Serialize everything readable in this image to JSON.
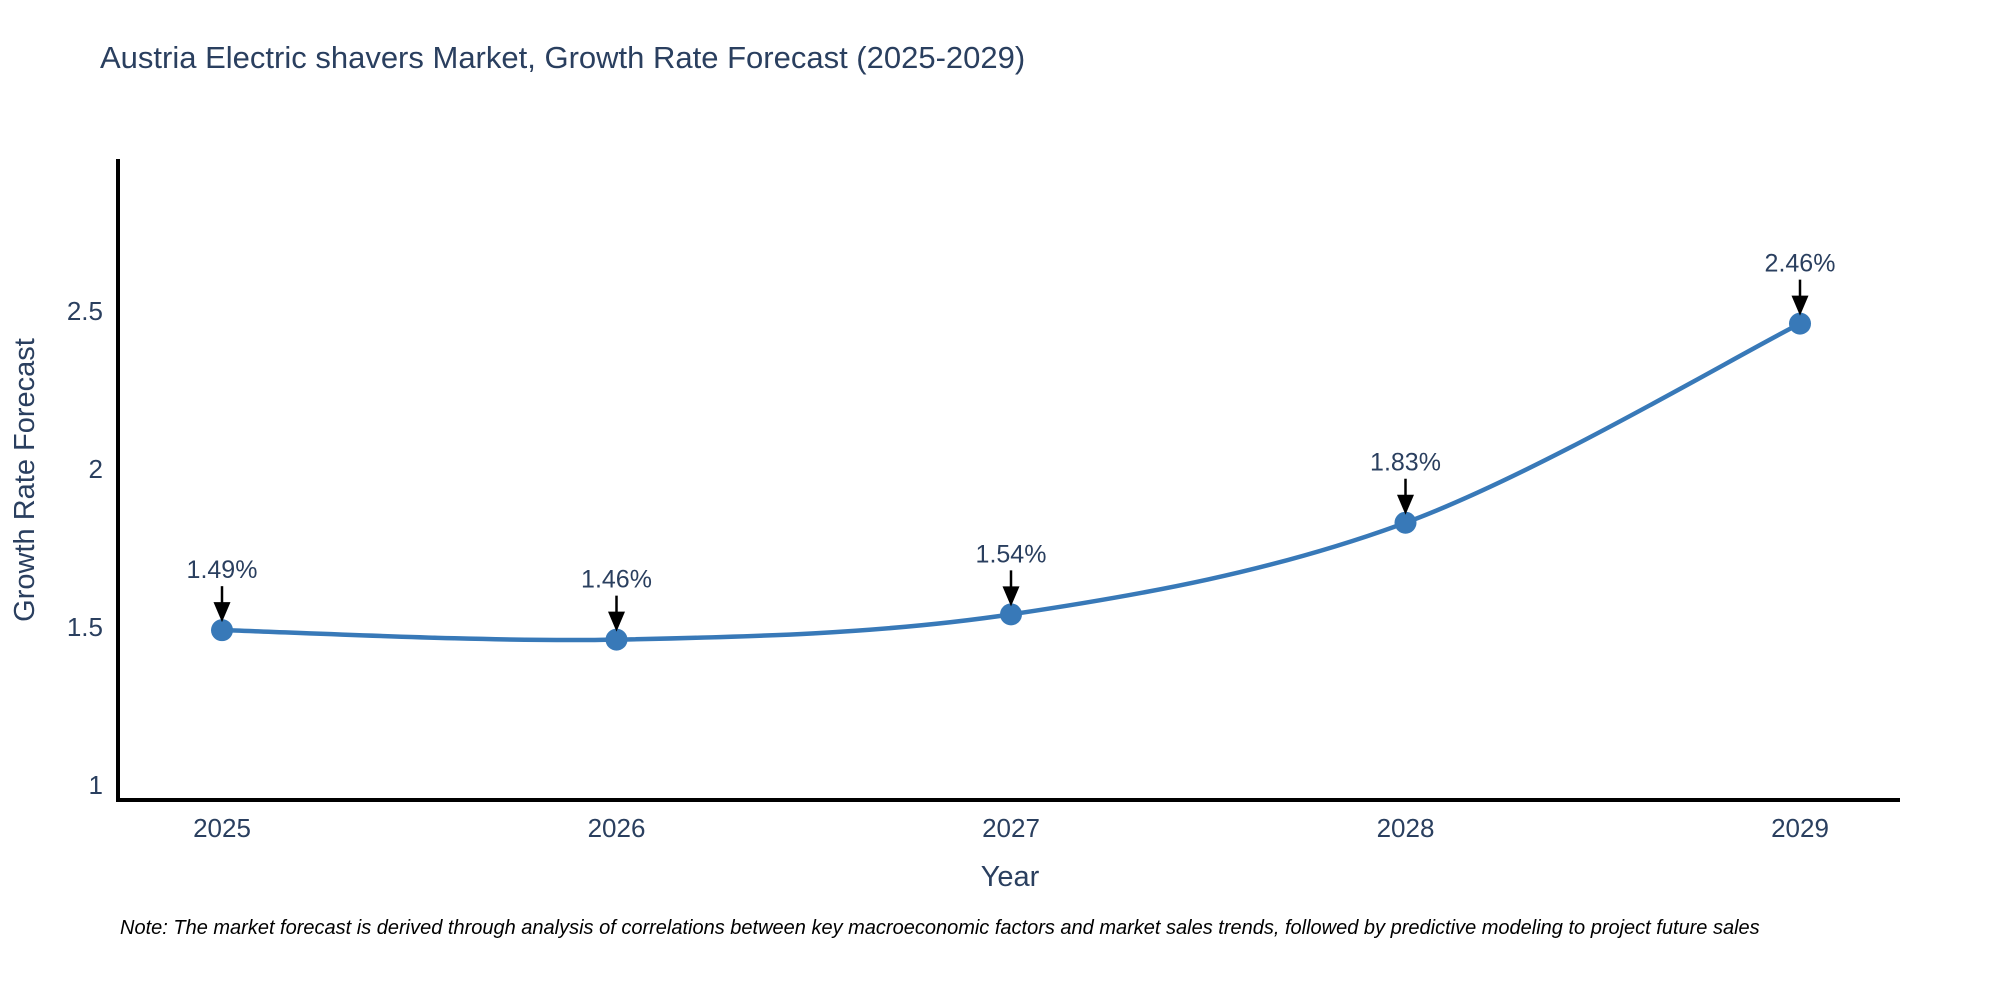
{
  "header": {
    "title": "Austria Electric shavers Market, Growth Rate Forecast (2025-2029)"
  },
  "chart_data": {
    "type": "line",
    "title": "Austria Electric shavers Market, Growth Rate Forecast (2025-2029)",
    "categories": [
      "2025",
      "2026",
      "2027",
      "2028",
      "2029"
    ],
    "series": [
      {
        "name": "Growth Rate Forecast",
        "values": [
          1.49,
          1.46,
          1.54,
          1.83,
          2.46
        ],
        "labels": [
          "1.49%",
          "1.46%",
          "1.54%",
          "1.83%",
          "2.46%"
        ]
      }
    ],
    "xlabel": "Year",
    "ylabel": "Growth Rate Forecast",
    "yticks": [
      1,
      1.5,
      2,
      2.5
    ],
    "ylim": [
      0.95,
      3.0
    ],
    "grid": false,
    "legend": "none",
    "smooth": true,
    "annotations_style": "arrow-down-to-point",
    "colors": {
      "line": "#3879b8",
      "marker": "#3879b8",
      "axis": "#000000",
      "text": "#2a3f5f",
      "annotation_text": "#2a3f5f",
      "annotation_arrow": "#000000",
      "background": "#ffffff"
    }
  },
  "note": {
    "text": "Note: The market forecast is derived through analysis of correlations between key macroeconomic factors and market sales trends, followed by predictive modeling to project future sales"
  }
}
